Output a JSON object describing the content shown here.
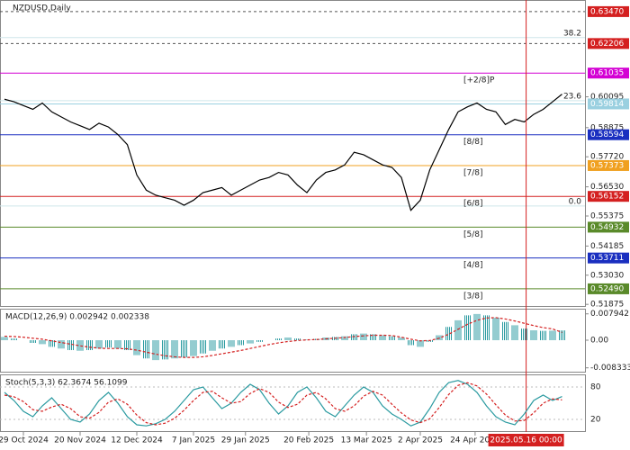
{
  "chart_data": {
    "type": "line",
    "title": "NZDUSD,Daily",
    "values": [
      0.6,
      0.599,
      0.5975,
      0.596,
      0.5985,
      0.595,
      0.593,
      0.591,
      0.5895,
      0.588,
      0.5905,
      0.589,
      0.586,
      0.582,
      0.57,
      0.564,
      0.562,
      0.561,
      0.56,
      0.558,
      0.56,
      0.563,
      0.564,
      0.565,
      0.562,
      0.564,
      0.566,
      0.568,
      0.569,
      0.571,
      0.57,
      0.566,
      0.563,
      0.568,
      0.571,
      0.572,
      0.574,
      0.579,
      0.578,
      0.576,
      0.574,
      0.573,
      0.569,
      0.556,
      0.56,
      0.572,
      0.58,
      0.588,
      0.595,
      0.597,
      0.5985,
      0.596,
      0.595,
      0.59,
      0.592,
      0.591,
      0.594,
      0.596,
      0.599,
      0.602
    ],
    "color": "#000000",
    "xticks": [
      {
        "value": 2,
        "label": "29 Oct 2024"
      },
      {
        "value": 8,
        "label": "20 Nov 2024"
      },
      {
        "value": 14,
        "label": "12 Dec 2024"
      },
      {
        "value": 20,
        "label": "7 Jan 2025"
      },
      {
        "value": 25.5,
        "label": "29 Jan 2025"
      },
      {
        "value": 32.2,
        "label": "20 Feb 2025"
      },
      {
        "value": 38.3,
        "label": "13 Mar 2025"
      },
      {
        "value": 44,
        "label": "2 Apr 2025"
      },
      {
        "value": 49.8,
        "label": "24 Apr 2025"
      }
    ],
    "cursor": {
      "value": 55.2,
      "label": "2025.05.16 00:00",
      "color": "#d42020"
    },
    "ylim": [
      0.5181,
      0.6393
    ],
    "yticks": [
      {
        "value": 0.60095,
        "label": "0.60095"
      },
      {
        "value": 0.58875,
        "label": "0.58875"
      },
      {
        "value": 0.5772,
        "label": "0.57720"
      },
      {
        "value": 0.5653,
        "label": "0.56530"
      },
      {
        "value": 0.55375,
        "label": "0.55375"
      },
      {
        "value": 0.54185,
        "label": "0.54185"
      },
      {
        "value": 0.5303,
        "label": "0.53030"
      },
      {
        "value": 0.51875,
        "label": "0.51875"
      }
    ],
    "levels": [
      {
        "value": 0.6347,
        "label": "0.63470",
        "color": "#d42020",
        "dash": true
      },
      {
        "value": 0.62206,
        "label": "0.62206",
        "color": "#d42020",
        "dash": true
      },
      {
        "value": 0.61035,
        "label": "0.61035",
        "color": "#d400d4",
        "tag": "[+2/8]P"
      },
      {
        "value": 0.59814,
        "label": "0.59814",
        "color": "#9ad0e0"
      },
      {
        "value": 0.58594,
        "label": "0.58594",
        "color": "#1a2fc0",
        "tag": "[8/8]"
      },
      {
        "value": 0.57373,
        "label": "0.57373",
        "color": "#f0a020",
        "tag": "[7/8]"
      },
      {
        "value": 0.56152,
        "label": "0.56152",
        "color": "#d42020",
        "tag": "[6/8]"
      },
      {
        "value": 0.54932,
        "label": "0.54932",
        "color": "#5a8a2a",
        "tag": "[5/8]"
      },
      {
        "value": 0.53711,
        "label": "0.53711",
        "color": "#1a2fc0",
        "tag": "[4/8]"
      },
      {
        "value": 0.5249,
        "label": "0.52490",
        "color": "#5a8a2a",
        "tag": "[3/8]"
      }
    ],
    "fib": [
      {
        "value": 0.6244,
        "label": "38.2"
      },
      {
        "value": 0.5994,
        "label": "23.6"
      },
      {
        "value": 0.5577,
        "label": "0.0"
      }
    ],
    "macd": {
      "title": "MACD(12,26,9) 0.002942 0.002338",
      "hist": [
        0.001,
        0.0005,
        0.0,
        -0.0008,
        -0.0012,
        -0.002,
        -0.0025,
        -0.003,
        -0.0032,
        -0.003,
        -0.0025,
        -0.0022,
        -0.0025,
        -0.003,
        -0.0045,
        -0.0055,
        -0.006,
        -0.0058,
        -0.0055,
        -0.0052,
        -0.0048,
        -0.004,
        -0.0032,
        -0.0025,
        -0.002,
        -0.0015,
        -0.001,
        -0.0005,
        0.0,
        0.0005,
        0.0008,
        0.0005,
        0.0002,
        0.0004,
        0.0008,
        0.001,
        0.0012,
        0.0018,
        0.002,
        0.0018,
        0.0015,
        0.0012,
        0.0008,
        -0.0015,
        -0.002,
        -0.0005,
        0.0015,
        0.004,
        0.006,
        0.0075,
        0.0079,
        0.0075,
        0.0068,
        0.0055,
        0.0045,
        0.0035,
        0.003,
        0.0028,
        0.0029,
        0.002942
      ],
      "signal": [
        0.0012,
        0.0011,
        0.0009,
        0.0006,
        0.0003,
        -0.0002,
        -0.0007,
        -0.0012,
        -0.0017,
        -0.0021,
        -0.0024,
        -0.0025,
        -0.0025,
        -0.0026,
        -0.003,
        -0.0036,
        -0.0042,
        -0.0047,
        -0.005,
        -0.0052,
        -0.0052,
        -0.005,
        -0.0046,
        -0.0041,
        -0.0036,
        -0.0031,
        -0.0025,
        -0.0019,
        -0.0013,
        -0.0008,
        -0.0004,
        -0.0001,
        0.0001,
        0.0002,
        0.0004,
        0.0006,
        0.0008,
        0.0011,
        0.0013,
        0.0015,
        0.0015,
        0.0014,
        0.0009,
        0.0003,
        -0.0002,
        -0.0001,
        0.0006,
        0.0018,
        0.0033,
        0.0048,
        0.006,
        0.0067,
        0.0068,
        0.0064,
        0.0058,
        0.0051,
        0.0044,
        0.0038,
        0.0034,
        0.002338
      ],
      "hist_color": "#2a9aa0",
      "signal_color": "#d42020",
      "ylim": [
        -0.0095,
        0.0095
      ],
      "yticks": [
        0.007942,
        {
          "value": 0,
          "label": "0.00"
        },
        -0.008333
      ]
    },
    "stoch": {
      "title": "Stoch(5,3,3) 62.3674 56.1099",
      "main": [
        70,
        55,
        35,
        25,
        45,
        60,
        40,
        20,
        15,
        30,
        55,
        70,
        50,
        25,
        10,
        8,
        12,
        20,
        35,
        55,
        75,
        80,
        60,
        40,
        50,
        70,
        85,
        75,
        50,
        30,
        45,
        70,
        80,
        60,
        35,
        25,
        45,
        65,
        80,
        70,
        45,
        30,
        20,
        8,
        15,
        40,
        70,
        88,
        92,
        85,
        70,
        45,
        25,
        15,
        10,
        30,
        55,
        65,
        55,
        62.3674
      ],
      "signal": [
        65,
        62,
        53,
        38,
        35,
        43,
        48,
        40,
        25,
        22,
        33,
        52,
        58,
        48,
        28,
        14,
        10,
        13,
        22,
        37,
        55,
        70,
        72,
        60,
        50,
        53,
        68,
        77,
        70,
        52,
        42,
        48,
        65,
        70,
        58,
        40,
        35,
        45,
        63,
        72,
        65,
        48,
        32,
        19,
        14,
        21,
        42,
        66,
        83,
        88,
        82,
        67,
        47,
        28,
        17,
        18,
        32,
        50,
        58,
        56.1099
      ],
      "main_color": "#2a9aa0",
      "signal_color": "#d42020",
      "ylim": [
        0,
        100
      ],
      "yticks": [
        80,
        20
      ]
    }
  }
}
